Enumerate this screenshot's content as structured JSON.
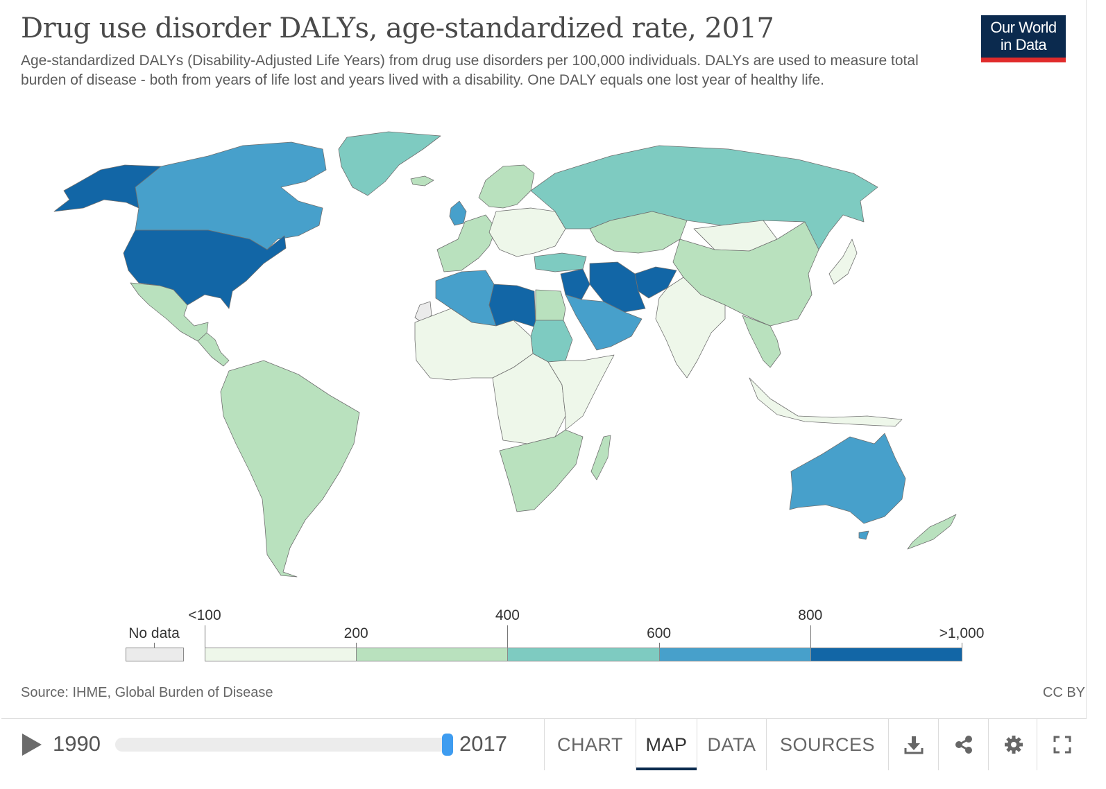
{
  "header": {
    "title": "Drug use disorder DALYs, age-standardized rate, 2017",
    "subtitle": "Age-standardized DALYs (Disability-Adjusted Life Years) from drug use disorders per 100,000 individuals. DALYs are used to measure total burden of disease - both from years of life lost and years lived with a disability. One DALY equals one lost year of healthy life.",
    "logo_line1": "Our World",
    "logo_line2": "in Data"
  },
  "legend": {
    "no_data_label": "No data",
    "no_data_color": "#ebebeb",
    "bins": [
      {
        "color": "#eef7ea"
      },
      {
        "color": "#b9e1be"
      },
      {
        "color": "#7ecbc1"
      },
      {
        "color": "#47a0cb"
      },
      {
        "color": "#1266a6"
      }
    ],
    "labels": [
      "<100",
      "200",
      "400",
      "600",
      "800",
      ">1,000"
    ]
  },
  "map_fills": {
    "greenland": "#7ecbc1",
    "canada": "#47a0cb",
    "alaska": "#1266a6",
    "usa": "#1266a6",
    "mexico": "#b9e1be",
    "central_america": "#b9e1be",
    "south_america": "#b9e1be",
    "western_europe": "#b9e1be",
    "uk": "#47a0cb",
    "eastern_europe": "#eef7ea",
    "scandinavia": "#b9e1be",
    "russia": "#7ecbc1",
    "kazakhstan": "#b9e1be",
    "mongolia": "#eef7ea",
    "china": "#b9e1be",
    "north_africa_west": "#47a0cb",
    "libya": "#1266a6",
    "egypt": "#b9e1be",
    "sudan": "#7ecbc1",
    "west_africa": "#eef7ea",
    "central_africa": "#eef7ea",
    "east_africa": "#eef7ea",
    "southern_africa": "#b9e1be",
    "madagascar": "#b9e1be",
    "arabia": "#47a0cb",
    "iran": "#1266a6",
    "afghanistan": "#1266a6",
    "levant": "#1266a6",
    "turkey": "#7ecbc1",
    "india": "#eef7ea",
    "southeast_asia": "#b9e1be",
    "indonesia": "#eef7ea",
    "japan": "#eef7ea",
    "australia": "#47a0cb",
    "new_zealand": "#b9e1be",
    "western_sahara": "#ebebeb",
    "iceland": "#b9e1be"
  },
  "footer": {
    "source": "Source: IHME, Global Burden of Disease",
    "license": "CC BY",
    "start_year": "1990",
    "end_year": "2017",
    "tabs": [
      "CHART",
      "MAP",
      "DATA",
      "SOURCES"
    ],
    "active_tab": "MAP"
  }
}
